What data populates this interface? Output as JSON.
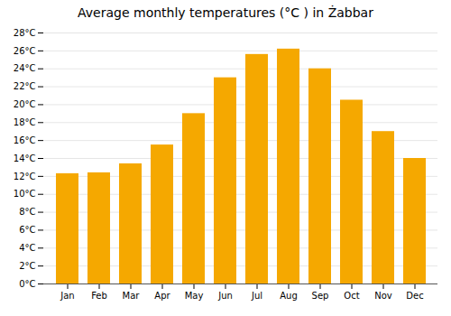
{
  "chart_data": {
    "type": "bar",
    "title": "Average monthly temperatures (°C ) in Żabbar",
    "categories": [
      "Jan",
      "Feb",
      "Mar",
      "Apr",
      "May",
      "Jun",
      "Jul",
      "Aug",
      "Sep",
      "Oct",
      "Nov",
      "Dec"
    ],
    "values": [
      12.3,
      12.4,
      13.4,
      15.5,
      19.0,
      23.0,
      25.6,
      26.2,
      24.0,
      20.5,
      17.0,
      14.0
    ],
    "color": "#F5A800",
    "ylim": [
      0,
      28
    ],
    "yticks": [
      {
        "value": 0,
        "label": "0°C"
      },
      {
        "value": 2,
        "label": "2°C"
      },
      {
        "value": 4,
        "label": "4°C"
      },
      {
        "value": 6,
        "label": "6°C"
      },
      {
        "value": 8,
        "label": "8°C"
      },
      {
        "value": 10,
        "label": "10°C"
      },
      {
        "value": 12,
        "label": "12°C"
      },
      {
        "value": 14,
        "label": "14°C"
      },
      {
        "value": 16,
        "label": "16°C"
      },
      {
        "value": 18,
        "label": "18°C"
      },
      {
        "value": 20,
        "label": "20°C"
      },
      {
        "value": 22,
        "label": "22°C"
      },
      {
        "value": 24,
        "label": "24°C"
      },
      {
        "value": 26,
        "label": "26°C"
      },
      {
        "value": 28,
        "label": "28°C"
      }
    ],
    "grid": true
  }
}
